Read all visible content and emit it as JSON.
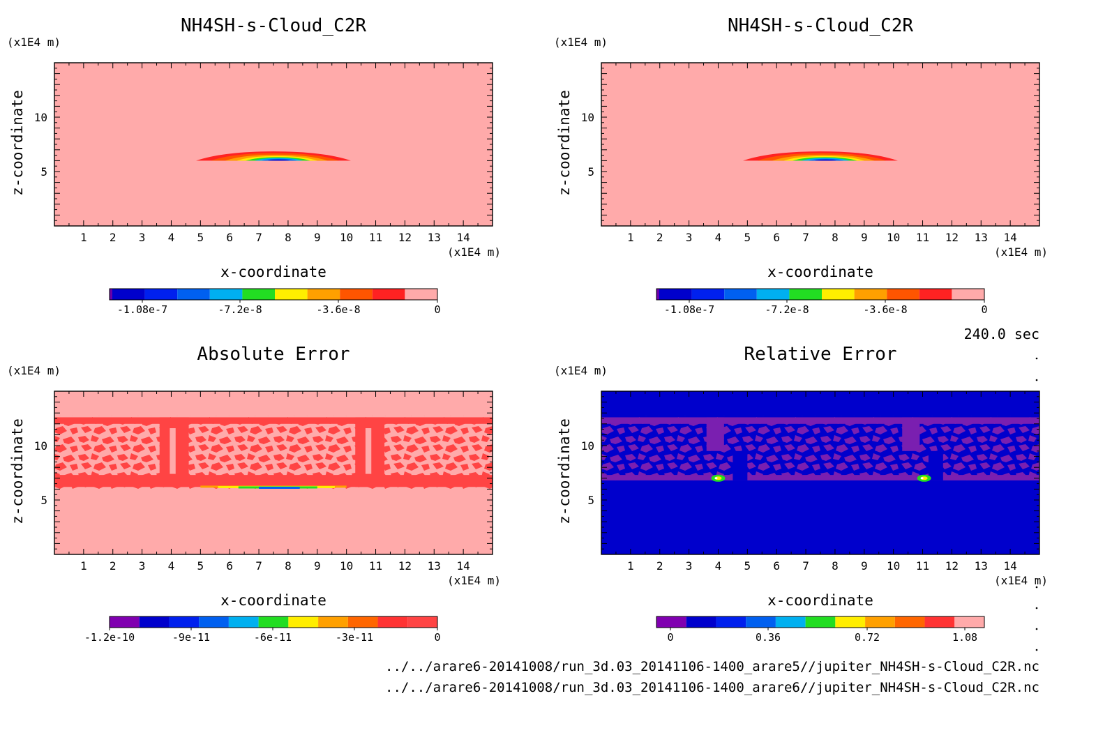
{
  "time_label": "240.0 sec",
  "file_paths": [
    "../../arare6-20141008/run_3d.03_20141106-1400_arare5//jupiter_NH4SH-s-Cloud_C2R.nc",
    "../../arare6-20141008/run_3d.03_20141106-1400_arare6//jupiter_NH4SH-s-Cloud_C2R.nc"
  ],
  "chart_data": [
    {
      "type": "heatmap",
      "title": "NH4SH-s-Cloud_C2R",
      "xlabel": "x-coordinate",
      "ylabel": "z-coordinate",
      "x_unit": "(x1E4 m)",
      "y_unit": "(x1E4 m)",
      "xlim": [
        0,
        15
      ],
      "ylim": [
        0,
        15
      ],
      "xticks": [
        "1",
        "2",
        "3",
        "4",
        "5",
        "6",
        "7",
        "8",
        "9",
        "10",
        "11",
        "12",
        "13",
        "14"
      ],
      "yticks": [
        "5",
        "10"
      ],
      "field": "cloud_lens",
      "colorbar": {
        "colors": [
          "#0000cc",
          "#0020ee",
          "#0060f0",
          "#00b0f0",
          "#22dd22",
          "#ffee00",
          "#ffa000",
          "#ff5500",
          "#ff2222",
          "#ffaaaa"
        ],
        "lead_color": "#6a00aa",
        "labels": [
          "-1.08e-7",
          "-7.2e-8",
          "-3.6e-8",
          "0"
        ]
      }
    },
    {
      "type": "heatmap",
      "title": "NH4SH-s-Cloud_C2R",
      "xlabel": "x-coordinate",
      "ylabel": "z-coordinate",
      "x_unit": "(x1E4 m)",
      "y_unit": "(x1E4 m)",
      "xlim": [
        0,
        15
      ],
      "ylim": [
        0,
        15
      ],
      "xticks": [
        "1",
        "2",
        "3",
        "4",
        "5",
        "6",
        "7",
        "8",
        "9",
        "10",
        "11",
        "12",
        "13",
        "14"
      ],
      "yticks": [
        "5",
        "10"
      ],
      "field": "cloud_lens",
      "colorbar": {
        "colors": [
          "#0000cc",
          "#0020ee",
          "#0060f0",
          "#00b0f0",
          "#22dd22",
          "#ffee00",
          "#ffa000",
          "#ff5500",
          "#ff2222",
          "#ffaaaa"
        ],
        "lead_color": "#6a00aa",
        "labels": [
          "-1.08e-7",
          "-7.2e-8",
          "-3.6e-8",
          "0"
        ]
      }
    },
    {
      "type": "heatmap",
      "title": "Absolute Error",
      "xlabel": "x-coordinate",
      "ylabel": "z-coordinate",
      "x_unit": "(x1E4 m)",
      "y_unit": "(x1E4 m)",
      "xlim": [
        0,
        15
      ],
      "ylim": [
        0,
        15
      ],
      "xticks": [
        "1",
        "2",
        "3",
        "4",
        "5",
        "6",
        "7",
        "8",
        "9",
        "10",
        "11",
        "12",
        "13",
        "14"
      ],
      "yticks": [
        "5",
        "10"
      ],
      "field": "absolute_error",
      "colorbar": {
        "colors": [
          "#8000b0",
          "#0000cc",
          "#0020ee",
          "#0060f0",
          "#00b0f0",
          "#22dd22",
          "#ffee00",
          "#ffa000",
          "#ff6600",
          "#ff3333",
          "#ff4444"
        ],
        "lead_color": "#8000b0",
        "labels": [
          "-1.2e-10",
          "-9e-11",
          "-6e-11",
          "-3e-11",
          "0"
        ]
      }
    },
    {
      "type": "heatmap",
      "title": "Relative Error",
      "xlabel": "x-coordinate",
      "ylabel": "z-coordinate",
      "x_unit": "(x1E4 m)",
      "y_unit": "(x1E4 m)",
      "xlim": [
        0,
        15
      ],
      "ylim": [
        0,
        15
      ],
      "xticks": [
        "1",
        "2",
        "3",
        "4",
        "5",
        "6",
        "7",
        "8",
        "9",
        "10",
        "11",
        "12",
        "13",
        "14"
      ],
      "yticks": [
        "5",
        "10"
      ],
      "field": "relative_error",
      "colorbar": {
        "colors": [
          "#8000b0",
          "#0000cc",
          "#0020ee",
          "#0060f0",
          "#00b0f0",
          "#22dd22",
          "#ffee00",
          "#ffa000",
          "#ff6600",
          "#ff3333",
          "#ffaaaa"
        ],
        "lead_color": "#8000b0",
        "labels": [
          "0",
          "0.36",
          "0.72",
          "1.08"
        ]
      }
    }
  ]
}
